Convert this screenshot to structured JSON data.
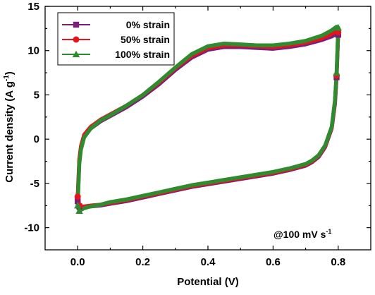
{
  "chart_data": {
    "type": "line",
    "title": "",
    "xlabel": "Potential (V)",
    "ylabel_main": "Current density (A g",
    "ylabel_sup": "-1",
    "ylabel_end": ")",
    "xlim": [
      -0.1,
      0.9
    ],
    "ylim": [
      -12.5,
      15
    ],
    "x_ticks": [
      "0.0",
      "0.2",
      "0.4",
      "0.6",
      "0.8"
    ],
    "y_ticks": [
      "-10",
      "-5",
      "0",
      "5",
      "10",
      "15"
    ],
    "annotation_main": "@100 mV s",
    "annotation_sup": "-1",
    "legend_position": "top-left",
    "grid": false,
    "series": [
      {
        "name": "0% strain",
        "color": "#7B1F7B",
        "marker": "square",
        "upper_x": [
          0.0,
          0.005,
          0.01,
          0.02,
          0.04,
          0.07,
          0.1,
          0.15,
          0.2,
          0.25,
          0.3,
          0.35,
          0.4,
          0.45,
          0.5,
          0.55,
          0.6,
          0.65,
          0.7,
          0.75,
          0.78,
          0.795,
          0.8
        ],
        "upper_y": [
          -7.0,
          -2.5,
          -1.0,
          0.3,
          1.2,
          2.0,
          2.6,
          3.6,
          4.8,
          6.2,
          7.8,
          9.2,
          10.1,
          10.4,
          10.4,
          10.3,
          10.2,
          10.4,
          10.7,
          11.2,
          11.6,
          11.9,
          11.8
        ],
        "lower_x": [
          0.8,
          0.798,
          0.795,
          0.79,
          0.78,
          0.76,
          0.74,
          0.72,
          0.7,
          0.65,
          0.6,
          0.55,
          0.5,
          0.45,
          0.4,
          0.35,
          0.3,
          0.25,
          0.2,
          0.15,
          0.1,
          0.07,
          0.04,
          0.02,
          0.01,
          0.005,
          0.0
        ],
        "lower_y": [
          11.8,
          10.0,
          7.0,
          4.0,
          1.2,
          -0.9,
          -2.0,
          -2.6,
          -3.0,
          -3.5,
          -3.9,
          -4.2,
          -4.5,
          -4.8,
          -5.1,
          -5.4,
          -5.8,
          -6.2,
          -6.6,
          -7.0,
          -7.3,
          -7.5,
          -7.6,
          -7.7,
          -7.7,
          -7.6,
          -7.0
        ]
      },
      {
        "name": "50% strain",
        "color": "#E8141C",
        "marker": "circle",
        "upper_x": [
          0.0,
          0.005,
          0.01,
          0.02,
          0.04,
          0.07,
          0.1,
          0.15,
          0.2,
          0.25,
          0.3,
          0.35,
          0.4,
          0.45,
          0.5,
          0.55,
          0.6,
          0.65,
          0.7,
          0.75,
          0.78,
          0.795,
          0.8
        ],
        "upper_y": [
          -6.5,
          -2.3,
          -0.8,
          0.5,
          1.4,
          2.2,
          2.8,
          3.8,
          5.0,
          6.4,
          8.0,
          9.4,
          10.3,
          10.6,
          10.6,
          10.5,
          10.4,
          10.6,
          10.9,
          11.4,
          11.9,
          12.2,
          12.1
        ],
        "lower_x": [
          0.8,
          0.798,
          0.795,
          0.79,
          0.78,
          0.76,
          0.74,
          0.72,
          0.7,
          0.65,
          0.6,
          0.55,
          0.5,
          0.45,
          0.4,
          0.35,
          0.3,
          0.25,
          0.2,
          0.15,
          0.1,
          0.07,
          0.04,
          0.02,
          0.01,
          0.005,
          0.0
        ],
        "lower_y": [
          12.1,
          10.2,
          7.2,
          4.2,
          1.3,
          -0.8,
          -1.9,
          -2.5,
          -2.9,
          -3.4,
          -3.8,
          -4.1,
          -4.4,
          -4.7,
          -5.0,
          -5.3,
          -5.7,
          -6.1,
          -6.5,
          -6.9,
          -7.2,
          -7.4,
          -7.5,
          -7.6,
          -7.6,
          -7.5,
          -6.5
        ]
      },
      {
        "name": "100% strain",
        "color": "#2E8B2E",
        "marker": "triangle",
        "upper_x": [
          0.0,
          0.005,
          0.01,
          0.02,
          0.04,
          0.07,
          0.1,
          0.15,
          0.2,
          0.25,
          0.3,
          0.35,
          0.4,
          0.45,
          0.5,
          0.55,
          0.6,
          0.65,
          0.7,
          0.75,
          0.78,
          0.795,
          0.8
        ],
        "upper_y": [
          -7.5,
          -2.8,
          -1.2,
          0.2,
          1.2,
          2.1,
          2.7,
          3.8,
          5.0,
          6.5,
          8.1,
          9.6,
          10.5,
          10.8,
          10.7,
          10.6,
          10.6,
          10.8,
          11.1,
          11.7,
          12.3,
          12.7,
          12.6
        ],
        "lower_x": [
          0.8,
          0.798,
          0.795,
          0.79,
          0.78,
          0.76,
          0.74,
          0.72,
          0.7,
          0.65,
          0.6,
          0.55,
          0.5,
          0.45,
          0.4,
          0.35,
          0.3,
          0.25,
          0.2,
          0.15,
          0.1,
          0.07,
          0.04,
          0.02,
          0.01,
          0.005,
          0.0
        ],
        "lower_y": [
          12.6,
          10.5,
          7.5,
          4.4,
          1.4,
          -0.7,
          -1.8,
          -2.4,
          -2.8,
          -3.3,
          -3.7,
          -4.0,
          -4.3,
          -4.6,
          -4.9,
          -5.2,
          -5.6,
          -6.0,
          -6.4,
          -6.8,
          -7.1,
          -7.4,
          -7.6,
          -7.8,
          -8.0,
          -8.1,
          -7.5
        ]
      }
    ]
  }
}
